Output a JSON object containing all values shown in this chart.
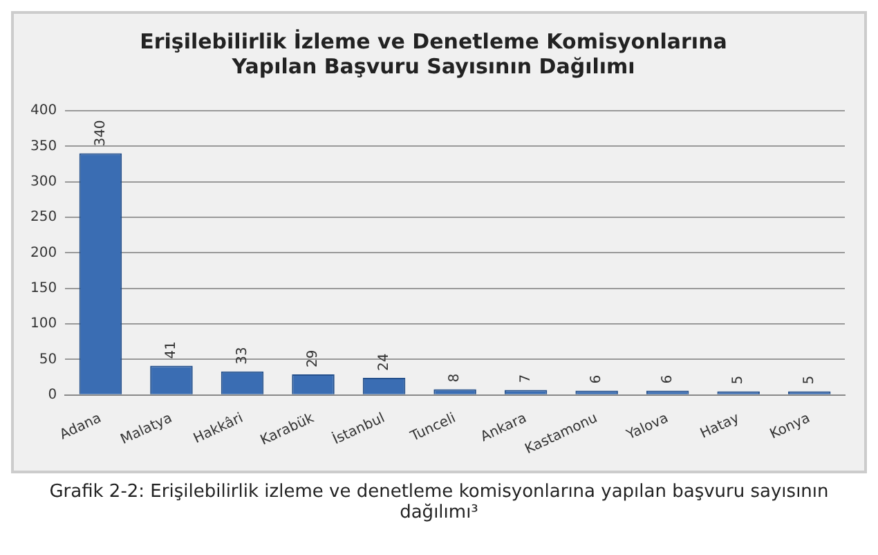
{
  "chart_data": {
    "type": "bar",
    "title": "Erişilebilirlik İzleme ve Denetleme Komisyonlarına\nYapılan Başvuru Sayısının Dağılımı",
    "categories": [
      "Adana",
      "Malatya",
      "Hakkâri",
      "Karabük",
      "İstanbul",
      "Tunceli",
      "Ankara",
      "Kastamonu",
      "Yalova",
      "Hatay",
      "Konya"
    ],
    "values": [
      340,
      41,
      33,
      29,
      24,
      8,
      7,
      6,
      6,
      5,
      5
    ],
    "color": "#3a6db3",
    "ylim": [
      0,
      400
    ],
    "yticks": [
      0,
      50,
      100,
      150,
      200,
      250,
      300,
      350,
      400
    ],
    "grid": "y",
    "data_labels": true,
    "legend": false,
    "annotations": [
      "Grafik 2-2: Erişilebilirlik izleme ve denetleme komisyonlarına yapılan başvuru sayısının dağılımı³"
    ]
  }
}
